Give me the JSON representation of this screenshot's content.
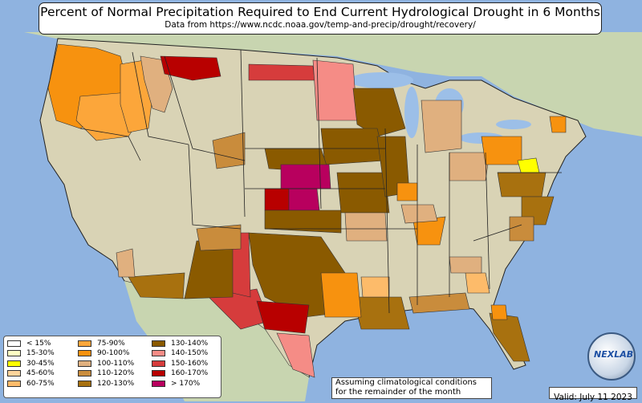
{
  "title": "Percent of Normal Precipitation Required to End Current Hydrological Drought in 6 Months",
  "subtitle": "Data from https://www.ncdc.noaa.gov/temp-and-precip/drought/recovery/",
  "colors": {
    "ocean": "#8fb3e0",
    "land": "#d9d3b5",
    "mexico_canada": "#c8d5b0",
    "lakes": "#9cbfe8",
    "border": "#222222"
  },
  "legend": {
    "columns": [
      [
        {
          "label": "< 15%",
          "color": "#ffffff"
        },
        {
          "label": "15-30%",
          "color": "#ffffc4"
        },
        {
          "label": "30-45%",
          "color": "#ffff00"
        },
        {
          "label": "45-60%",
          "color": "#fdd49b"
        },
        {
          "label": "60-75%",
          "color": "#fdbb6a"
        }
      ],
      [
        {
          "label": "75-90%",
          "color": "#fca63a"
        },
        {
          "label": "90-100%",
          "color": "#f7920f"
        },
        {
          "label": "100-110%",
          "color": "#e0b07f"
        },
        {
          "label": "110-120%",
          "color": "#c98c3c"
        },
        {
          "label": "120-130%",
          "color": "#a8710f"
        }
      ],
      [
        {
          "label": "130-140%",
          "color": "#8a5a00"
        },
        {
          "label": "140-150%",
          "color": "#f58c86"
        },
        {
          "label": "150-160%",
          "color": "#d63c3c"
        },
        {
          "label": "160-170%",
          "color": "#b80000"
        },
        {
          "label": "> 170%",
          "color": "#b8005e"
        }
      ]
    ]
  },
  "note": {
    "line1": "Assuming climatological conditions",
    "line2": "for the remainder of the month"
  },
  "valid": "Valid: July 11 2023",
  "logo_text": "NEXLAB"
}
